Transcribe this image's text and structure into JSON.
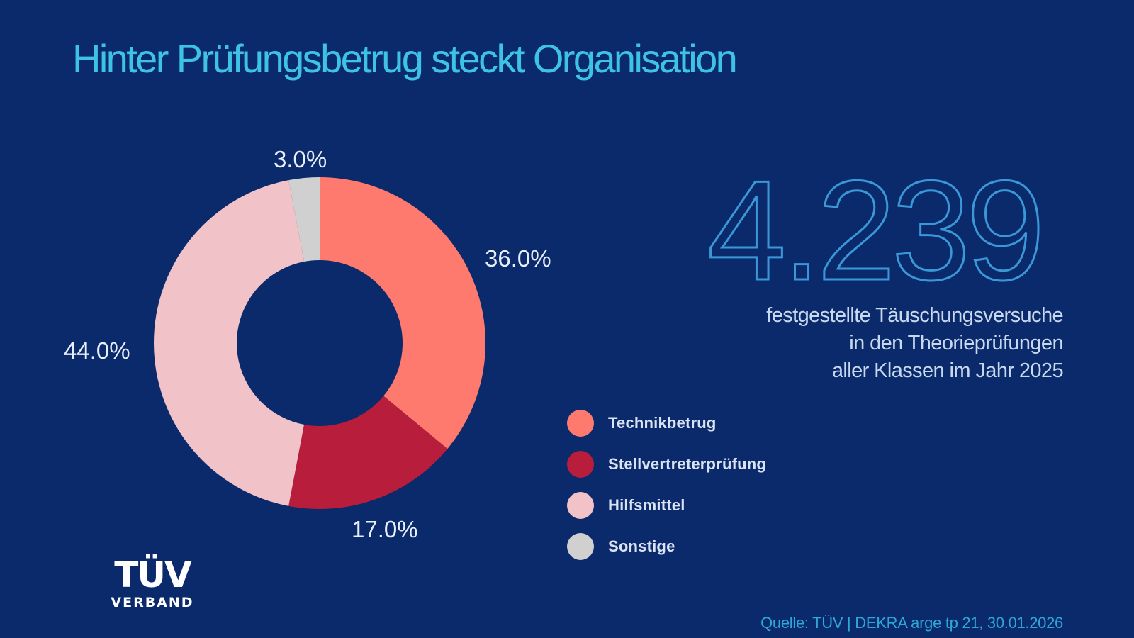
{
  "header": {
    "title": "Hinter Prüfungsbetrug steckt Organisation"
  },
  "stat": {
    "value": "4.239",
    "description_lines": [
      "festgestellte Täuschungsversuche",
      "in den Theorieprüfungen",
      "aller Klassen im Jahr 2025"
    ]
  },
  "legend": {
    "items": [
      {
        "label": "Technikbetrug",
        "color": "#ff7a6e"
      },
      {
        "label": "Stellvertreterprüfung",
        "color": "#b81d3c"
      },
      {
        "label": "Hilfsmittel",
        "color": "#f1c2c8"
      },
      {
        "label": "Sonstige",
        "color": "#d0d0d0"
      }
    ]
  },
  "slice_labels": {
    "technik": "36.0%",
    "stellvertreter": "17.0%",
    "hilfsmittel": "44.0%",
    "sonstige": "3.0%"
  },
  "logo": {
    "main": "TÜV",
    "sub": "VERBAND"
  },
  "footer": {
    "source": "Quelle: TÜV | DEKRA arge tp 21, 30.01.2026"
  },
  "colors": {
    "background": "#0b2a6b",
    "title": "#3ec3e6",
    "stat_outline": "#3a98d8",
    "source": "#2fa6d8"
  },
  "chart_data": {
    "type": "pie",
    "subtype": "donut",
    "title": "Hinter Prüfungsbetrug steckt Organisation",
    "categories": [
      "Technikbetrug",
      "Stellvertreterprüfung",
      "Hilfsmittel",
      "Sonstige"
    ],
    "values": [
      36.0,
      17.0,
      44.0,
      3.0
    ],
    "unit": "%",
    "colors": [
      "#ff7a6e",
      "#b81d3c",
      "#f1c2c8",
      "#d0d0d0"
    ],
    "start_angle": "12 o'clock, clockwise",
    "legend_position": "right",
    "annotation": "4.239 festgestellte Täuschungsversuche in den Theorieprüfungen aller Klassen im Jahr 2025",
    "source": "Quelle: TÜV | DEKRA arge tp 21, 30.01.2026"
  }
}
